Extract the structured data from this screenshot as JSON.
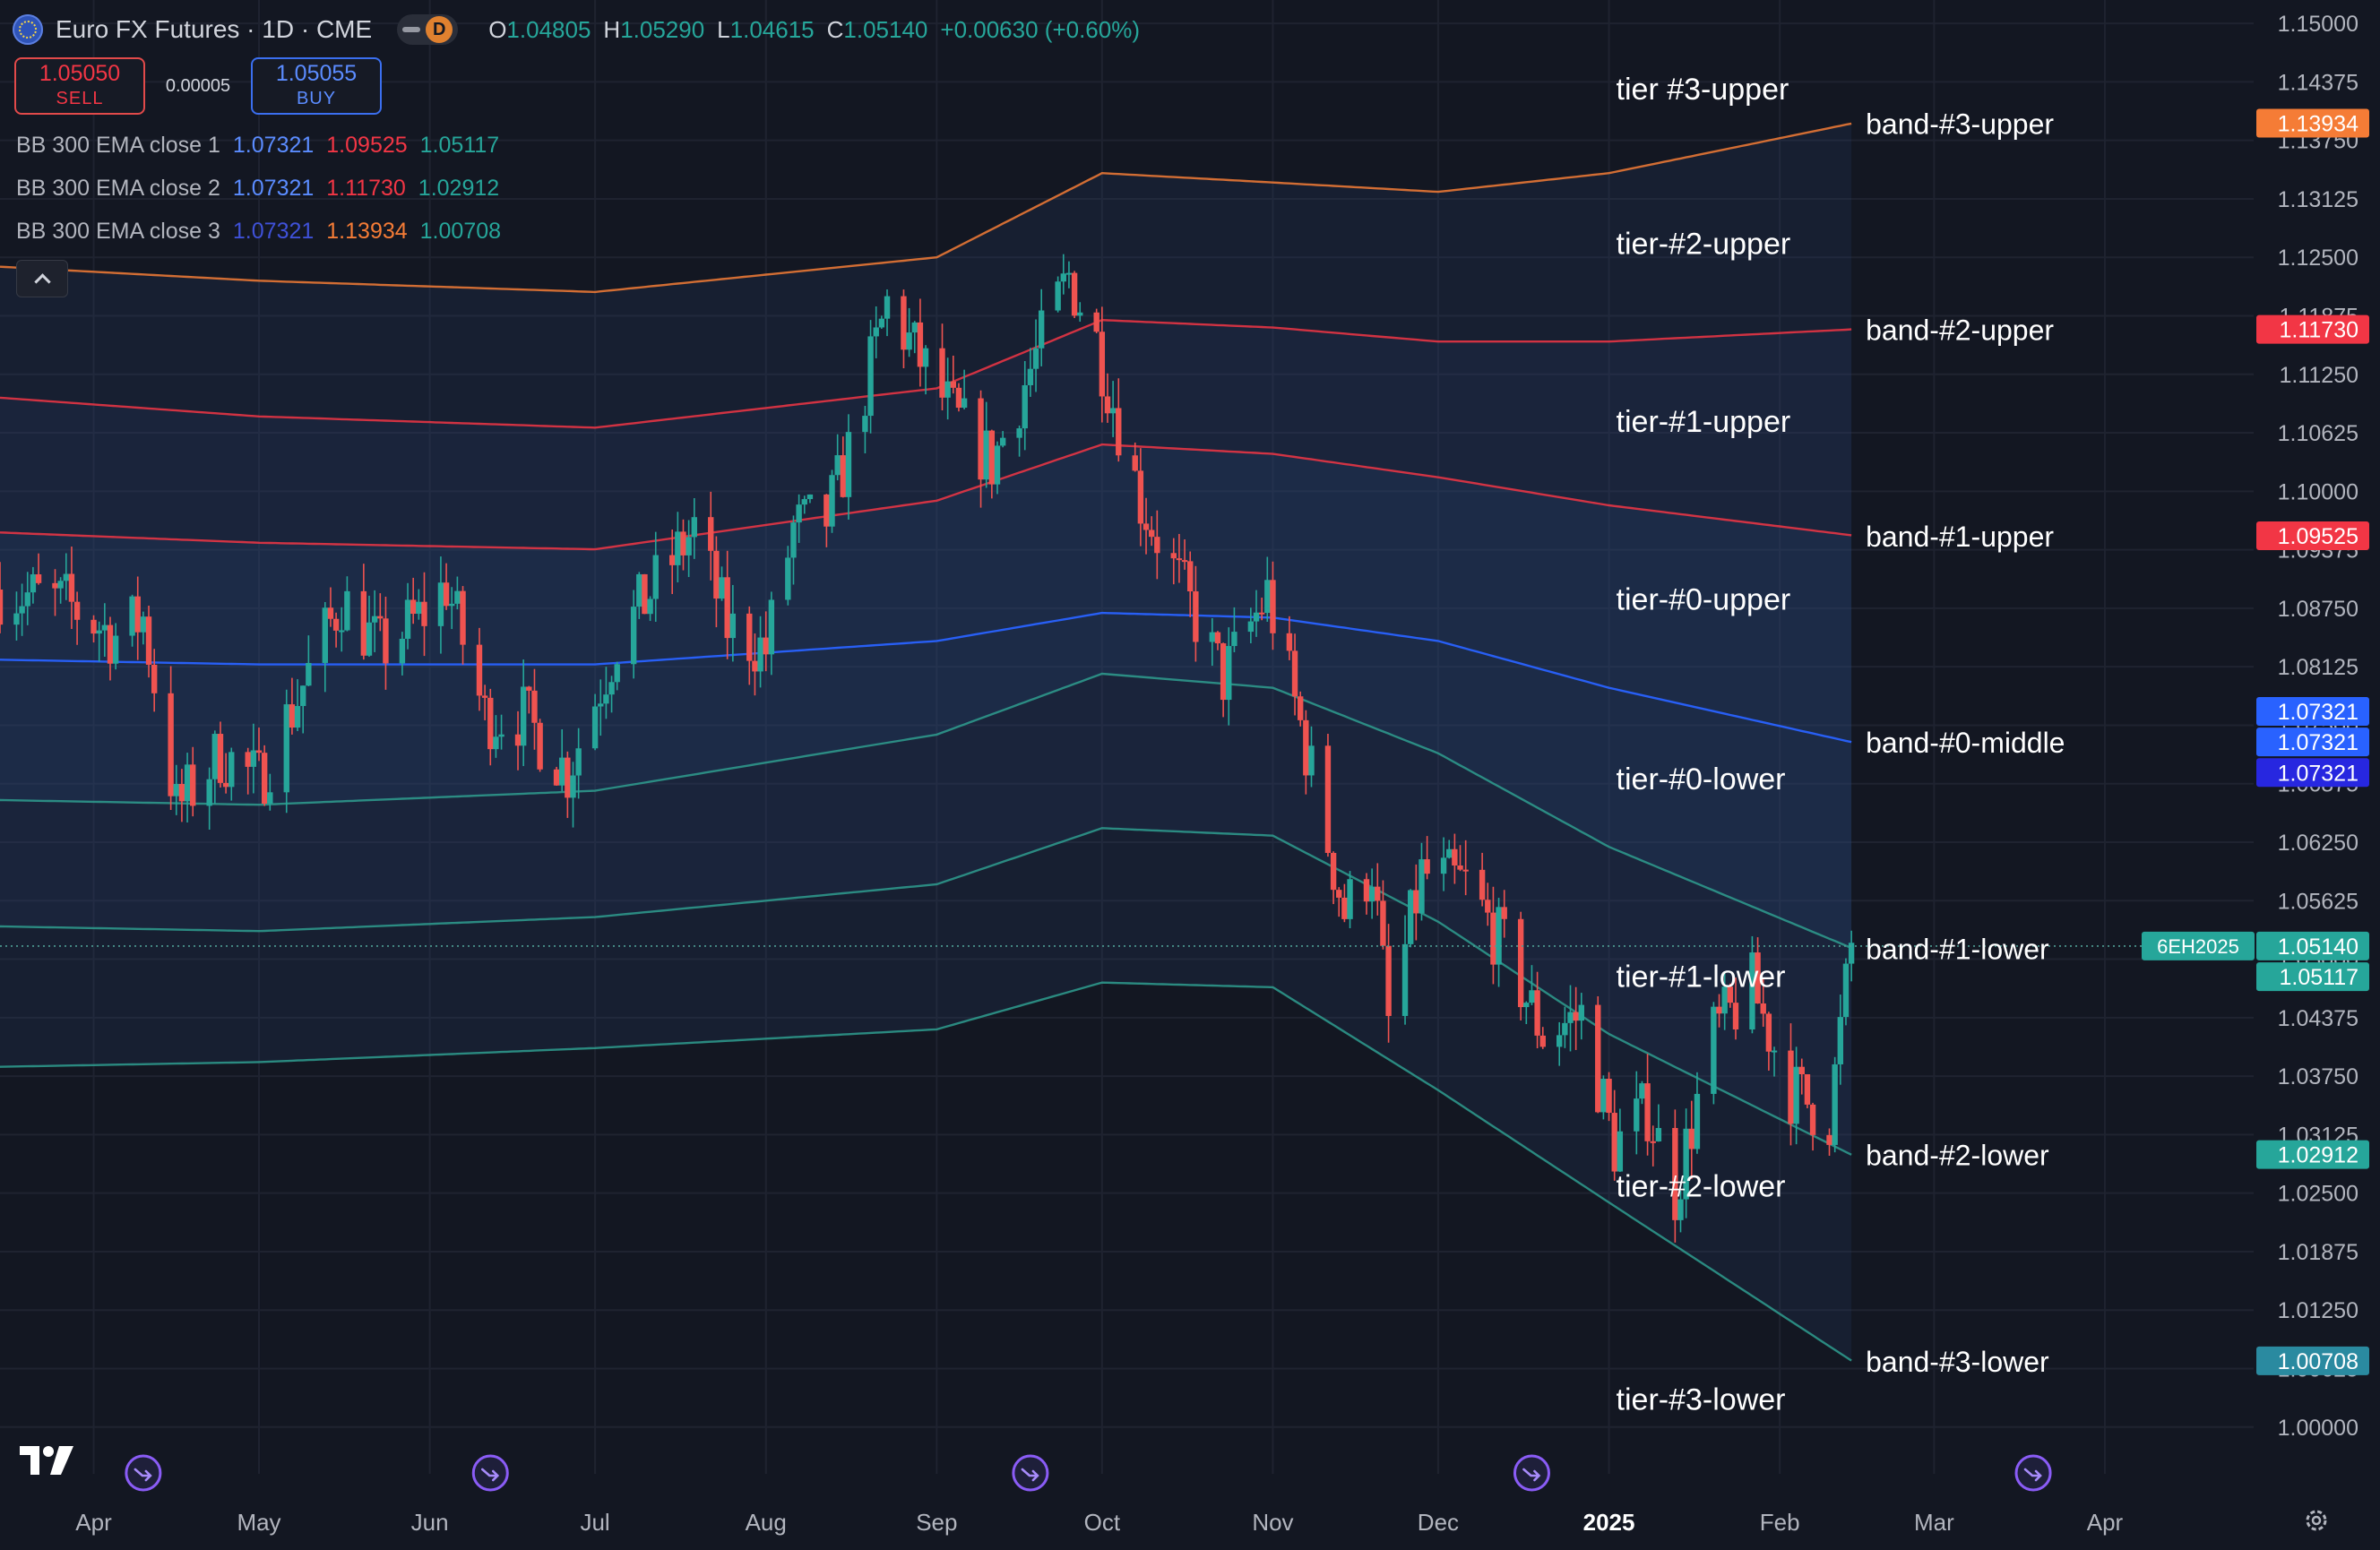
{
  "header": {
    "symbol": "Euro FX Futures · 1D · CME",
    "interval_badge": "D",
    "ohlc": [
      {
        "k": "O",
        "v": "1.04805"
      },
      {
        "k": "H",
        "v": "1.05290"
      },
      {
        "k": "L",
        "v": "1.04615"
      },
      {
        "k": "C",
        "v": "1.05140"
      },
      {
        "k": "",
        "v": "+0.00630 (+0.60%)"
      }
    ]
  },
  "trade": {
    "sell_price": "1.05050",
    "sell_label": "SELL",
    "spread": "0.00005",
    "buy_price": "1.05055",
    "buy_label": "BUY"
  },
  "legend": [
    {
      "name": "BB 300 EMA close 1",
      "v1": "1.07321",
      "v2": "1.09525",
      "v3": "1.05117"
    },
    {
      "name": "BB 300 EMA close 2",
      "v1": "1.07321",
      "v2": "1.11730",
      "v3": "1.02912"
    },
    {
      "name": "BB 300 EMA close 3",
      "v1": "1.07321",
      "v2": "1.13934",
      "v3": "1.00708"
    }
  ],
  "colors": {
    "background": "#131722",
    "up": "#26a69a",
    "down": "#ef5350",
    "middle": "#2962ff",
    "band1_upper": "#f23645",
    "band2_upper": "#f23645",
    "band3_upper": "#f57c36",
    "band_lower": "#2f9e8f",
    "legend_v1": "#5b8cff",
    "legend_v2": "#f23645",
    "legend_v3": "#26a69a"
  },
  "chart_data": {
    "type": "candlestick",
    "x_range": [
      "2024-03-15",
      "2025-04-28"
    ],
    "y_range": [
      0.995,
      1.1525
    ],
    "x_ticks": [
      {
        "date": "2024-04-01",
        "label": "Apr"
      },
      {
        "date": "2024-05-01",
        "label": "May"
      },
      {
        "date": "2024-06-01",
        "label": "Jun"
      },
      {
        "date": "2024-07-01",
        "label": "Jul"
      },
      {
        "date": "2024-08-01",
        "label": "Aug"
      },
      {
        "date": "2024-09-01",
        "label": "Sep"
      },
      {
        "date": "2024-10-01",
        "label": "Oct"
      },
      {
        "date": "2024-11-01",
        "label": "Nov"
      },
      {
        "date": "2024-12-01",
        "label": "Dec"
      },
      {
        "date": "2025-01-01",
        "label": "2025"
      },
      {
        "date": "2025-02-01",
        "label": "Feb"
      },
      {
        "date": "2025-03-01",
        "label": "Mar"
      },
      {
        "date": "2025-04-01",
        "label": "Apr"
      }
    ],
    "y_ticks": [
      "1.15000",
      "1.14375",
      "1.13750",
      "1.13125",
      "1.12500",
      "1.11875",
      "1.11250",
      "1.10625",
      "1.10000",
      "1.09375",
      "1.08750",
      "1.08125",
      "1.07500",
      "1.06875",
      "1.06250",
      "1.05625",
      "1.05000",
      "1.04375",
      "1.03750",
      "1.03125",
      "1.02500",
      "1.01875",
      "1.01250",
      "1.00625",
      "1.00000"
    ],
    "shade_end": "2025-02-14",
    "price_path": [
      [
        "2024-03-15",
        1.0895
      ],
      [
        "2024-03-27",
        1.088
      ],
      [
        "2024-04-05",
        1.0845
      ],
      [
        "2024-04-10",
        1.0865
      ],
      [
        "2024-04-16",
        1.066
      ],
      [
        "2024-04-24",
        1.072
      ],
      [
        "2024-05-01",
        1.069
      ],
      [
        "2024-05-08",
        1.078
      ],
      [
        "2024-05-16",
        1.0885
      ],
      [
        "2024-05-23",
        1.083
      ],
      [
        "2024-05-31",
        1.087
      ],
      [
        "2024-06-04",
        1.09
      ],
      [
        "2024-06-11",
        1.076
      ],
      [
        "2024-06-18",
        1.076
      ],
      [
        "2024-06-26",
        1.07
      ],
      [
        "2024-07-05",
        1.084
      ],
      [
        "2024-07-12",
        1.09
      ],
      [
        "2024-07-19",
        1.096
      ],
      [
        "2024-07-25",
        1.0855
      ],
      [
        "2024-08-01",
        1.083
      ],
      [
        "2024-08-06",
        1.096
      ],
      [
        "2024-08-12",
        1.097
      ],
      [
        "2024-08-16",
        1.104
      ],
      [
        "2024-08-23",
        1.12
      ],
      [
        "2024-08-28",
        1.115
      ],
      [
        "2024-09-04",
        1.108
      ],
      [
        "2024-09-11",
        1.103
      ],
      [
        "2024-09-18",
        1.113
      ],
      [
        "2024-09-25",
        1.123
      ],
      [
        "2024-09-30",
        1.116
      ],
      [
        "2024-10-08",
        1.099
      ],
      [
        "2024-10-16",
        1.089
      ],
      [
        "2024-10-23",
        1.08
      ],
      [
        "2024-10-31",
        1.089
      ],
      [
        "2024-11-06",
        1.075
      ],
      [
        "2024-11-14",
        1.055
      ],
      [
        "2024-11-19",
        1.06
      ],
      [
        "2024-11-22",
        1.043
      ],
      [
        "2024-11-28",
        1.059
      ],
      [
        "2024-12-06",
        1.058
      ],
      [
        "2024-12-13",
        1.051
      ],
      [
        "2024-12-20",
        1.042
      ],
      [
        "2024-12-27",
        1.044
      ],
      [
        "2025-01-02",
        1.03
      ],
      [
        "2025-01-08",
        1.034
      ],
      [
        "2025-01-13",
        1.025
      ],
      [
        "2025-01-20",
        1.042
      ],
      [
        "2025-01-27",
        1.047
      ],
      [
        "2025-02-03",
        1.036
      ],
      [
        "2025-02-10",
        1.033
      ],
      [
        "2025-02-14",
        1.0514
      ]
    ],
    "bands": {
      "middle": [
        [
          "2024-03-15",
          1.082
        ],
        [
          "2024-05-01",
          1.0815
        ],
        [
          "2024-07-01",
          1.0815
        ],
        [
          "2024-09-01",
          1.084
        ],
        [
          "2024-10-01",
          1.087
        ],
        [
          "2024-11-01",
          1.0865
        ],
        [
          "2024-12-01",
          1.084
        ],
        [
          "2025-01-01",
          1.079
        ],
        [
          "2025-02-14",
          1.0732
        ]
      ],
      "upper_1": [
        [
          "2024-03-15",
          1.0956
        ],
        [
          "2024-05-01",
          1.0945
        ],
        [
          "2024-07-01",
          1.0938
        ],
        [
          "2024-09-01",
          1.099
        ],
        [
          "2024-10-01",
          1.105
        ],
        [
          "2024-11-01",
          1.104
        ],
        [
          "2024-12-01",
          1.1015
        ],
        [
          "2025-01-01",
          1.0985
        ],
        [
          "2025-02-14",
          1.0953
        ]
      ],
      "lower_1": [
        [
          "2024-03-15",
          1.067
        ],
        [
          "2024-05-01",
          1.0665
        ],
        [
          "2024-07-01",
          1.068
        ],
        [
          "2024-09-01",
          1.074
        ],
        [
          "2024-10-01",
          1.0805
        ],
        [
          "2024-11-01",
          1.079
        ],
        [
          "2024-12-01",
          1.072
        ],
        [
          "2025-01-01",
          1.062
        ],
        [
          "2025-02-14",
          1.0512
        ]
      ],
      "upper_2": [
        [
          "2024-03-15",
          1.11
        ],
        [
          "2024-05-01",
          1.108
        ],
        [
          "2024-07-01",
          1.1068
        ],
        [
          "2024-09-01",
          1.111
        ],
        [
          "2024-10-01",
          1.1183
        ],
        [
          "2024-11-01",
          1.1175
        ],
        [
          "2024-12-01",
          1.116
        ],
        [
          "2025-01-01",
          1.116
        ],
        [
          "2025-02-14",
          1.1173
        ]
      ],
      "lower_2": [
        [
          "2024-03-15",
          1.0535
        ],
        [
          "2024-05-01",
          1.053
        ],
        [
          "2024-07-01",
          1.0545
        ],
        [
          "2024-09-01",
          1.058
        ],
        [
          "2024-10-01",
          1.064
        ],
        [
          "2024-11-01",
          1.0632
        ],
        [
          "2024-12-01",
          1.054
        ],
        [
          "2025-01-01",
          1.042
        ],
        [
          "2025-02-14",
          1.0291
        ]
      ],
      "upper_3": [
        [
          "2024-03-15",
          1.124
        ],
        [
          "2024-05-01",
          1.1225
        ],
        [
          "2024-07-01",
          1.1213
        ],
        [
          "2024-09-01",
          1.125
        ],
        [
          "2024-10-01",
          1.134
        ],
        [
          "2024-11-01",
          1.133
        ],
        [
          "2024-12-01",
          1.132
        ],
        [
          "2025-01-01",
          1.134
        ],
        [
          "2025-02-14",
          1.1393
        ]
      ],
      "lower_3": [
        [
          "2024-03-15",
          1.0385
        ],
        [
          "2024-05-01",
          1.039
        ],
        [
          "2024-07-01",
          1.0405
        ],
        [
          "2024-09-01",
          1.0425
        ],
        [
          "2024-10-01",
          1.0475
        ],
        [
          "2024-11-01",
          1.047
        ],
        [
          "2024-12-01",
          1.036
        ],
        [
          "2025-01-01",
          1.024
        ],
        [
          "2025-02-14",
          1.0071
        ]
      ]
    },
    "band_labels": [
      {
        "text": "band-#3-upper",
        "y": 1.13934
      },
      {
        "text": "band-#2-upper",
        "y": 1.1173
      },
      {
        "text": "band-#1-upper",
        "y": 1.09525
      },
      {
        "text": "band-#0-middle",
        "y": 1.07321
      },
      {
        "text": "band-#1-lower",
        "y": 1.05117
      },
      {
        "text": "band-#2-lower",
        "y": 1.02912
      },
      {
        "text": "band-#3-lower",
        "y": 1.00708
      }
    ],
    "tier_labels": [
      {
        "text": "tier #3-upper",
        "y": 1.143
      },
      {
        "text": "tier-#2-upper",
        "y": 1.1265
      },
      {
        "text": "tier-#1-upper",
        "y": 1.1075
      },
      {
        "text": "tier-#0-upper",
        "y": 1.0885
      },
      {
        "text": "tier-#0-lower",
        "y": 1.0693
      },
      {
        "text": "tier-#1-lower",
        "y": 1.0482
      },
      {
        "text": "tier-#2-lower",
        "y": 1.0258
      },
      {
        "text": "tier-#3-lower",
        "y": 1.003
      }
    ],
    "price_badges": [
      {
        "text": "1.13934",
        "y": 1.13934,
        "color": "#f57c36"
      },
      {
        "text": "1.11730",
        "y": 1.1173,
        "color": "#f23645"
      },
      {
        "text": "1.09525",
        "y": 1.09525,
        "color": "#f23645"
      },
      {
        "text": "1.07321",
        "y": 1.07648,
        "color": "#2962ff"
      },
      {
        "text": "1.07321",
        "y": 1.07321,
        "color": "#2962ff"
      },
      {
        "text": "1.07321",
        "y": 1.06994,
        "color": "#2727e0"
      },
      {
        "text": "1.05140",
        "y": 1.0514,
        "color": "#26a69a"
      },
      {
        "text": "1.05117",
        "y": 1.04813,
        "color": "#26a69a"
      },
      {
        "text": "1.02912",
        "y": 1.02912,
        "color": "#26a69a"
      },
      {
        "text": "1.00708",
        "y": 1.00708,
        "color": "#2a8aa0"
      }
    ],
    "contract_badge": "6EH2025",
    "last_price": 1.0514,
    "event_markers": [
      "2024-04-10",
      "2024-06-12",
      "2024-09-18",
      "2024-12-18",
      "2025-03-19"
    ]
  }
}
